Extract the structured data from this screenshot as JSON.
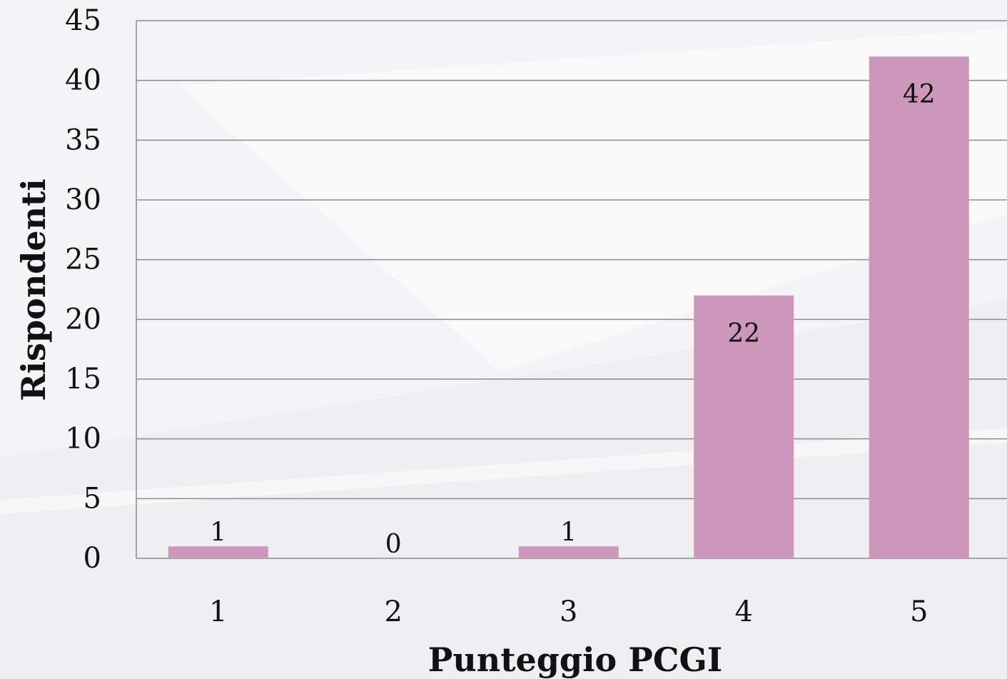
{
  "chart_data": {
    "type": "bar",
    "categories": [
      "1",
      "2",
      "3",
      "4",
      "5"
    ],
    "values": [
      1,
      0,
      1,
      22,
      42
    ],
    "data_labels": [
      "1",
      "0",
      "1",
      "22",
      "42"
    ],
    "xlabel": "Punteggio PCGI",
    "ylabel": "Rispondenti",
    "ylim": [
      0,
      45
    ],
    "yticks": [
      0,
      5,
      10,
      15,
      20,
      25,
      30,
      35,
      40,
      45
    ],
    "grid": true,
    "legend": "none",
    "colors": {
      "bar": "#cd97bb",
      "grid": "#8c8c8c",
      "text": "#111111",
      "background": "#f4f4f6"
    }
  }
}
